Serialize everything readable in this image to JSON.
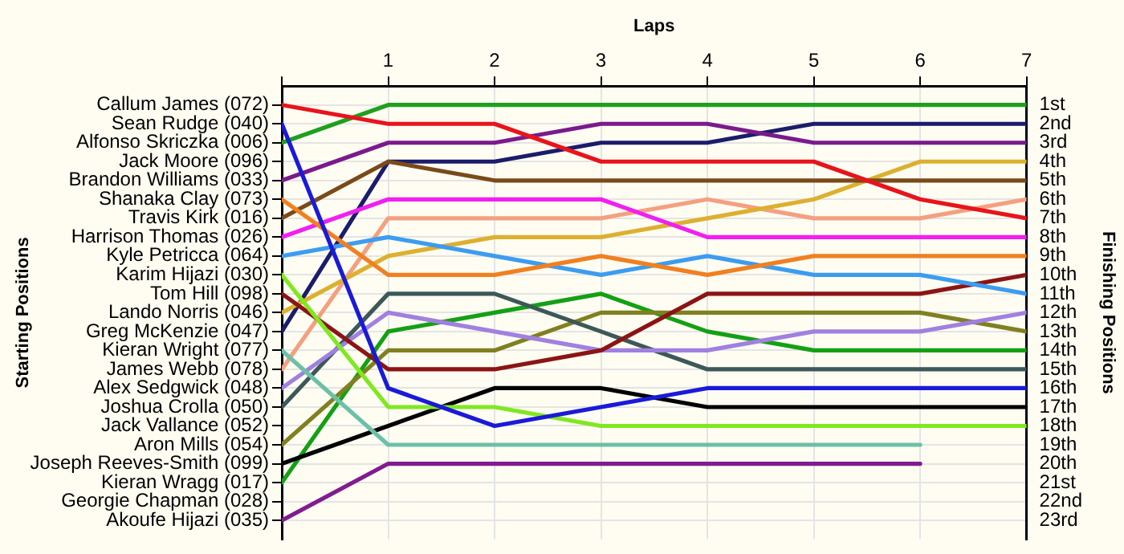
{
  "chart_data": {
    "type": "line",
    "xlabel": "Laps",
    "ylabel": "Finishing Positions",
    "annotations": [
      "Starting Positions"
    ],
    "x": [
      0,
      1,
      2,
      3,
      4,
      5,
      6,
      7
    ],
    "xlim": [
      0,
      7
    ],
    "xticks": [
      {
        "value": 0,
        "label": null
      },
      1,
      2,
      3,
      4,
      5,
      6,
      7
    ],
    "ylim": [
      24,
      0
    ],
    "yticks": [
      {
        "value": 1,
        "label": "1st"
      },
      {
        "value": 2,
        "label": "2nd"
      },
      {
        "value": 3,
        "label": "3rd"
      },
      {
        "value": 4,
        "label": "4th"
      },
      {
        "value": 5,
        "label": "5th"
      },
      {
        "value": 6,
        "label": "6th"
      },
      {
        "value": 7,
        "label": "7th"
      },
      {
        "value": 8,
        "label": "8th"
      },
      {
        "value": 9,
        "label": "9th"
      },
      {
        "value": 10,
        "label": "10th"
      },
      {
        "value": 11,
        "label": "11th"
      },
      {
        "value": 12,
        "label": "12th"
      },
      {
        "value": 13,
        "label": "13th"
      },
      {
        "value": 14,
        "label": "14th"
      },
      {
        "value": 15,
        "label": "15th"
      },
      {
        "value": 16,
        "label": "16th"
      },
      {
        "value": 17,
        "label": "17th"
      },
      {
        "value": 18,
        "label": "18th"
      },
      {
        "value": 19,
        "label": "19th"
      },
      {
        "value": 20,
        "label": "20th"
      },
      {
        "value": 21,
        "label": "21st"
      },
      {
        "value": 22,
        "label": "22nd"
      },
      {
        "value": 23,
        "label": "23rd"
      }
    ],
    "y_categories": [
      "Callum James (072)",
      "Sean Rudge (040)",
      "Alfonso Skriczka (006)",
      "Jack Moore (096)",
      "Brandon Williams (033)",
      "Shanaka Clay (073)",
      "Travis Kirk (016)",
      "Harrison Thomas (026)",
      "Kyle Petricca (064)",
      "Karim Hijazi (030)",
      "Tom Hill (098)",
      "Lando Norris (046)",
      "Greg McKenzie (047)",
      "Kieran Wright (077)",
      "James Webb (078)",
      "Alex Sedgwick (048)",
      "Joshua Crolla (050)",
      "Jack Vallance (052)",
      "Aron Mills (054)",
      "Joseph Reeves-Smith (099)",
      "Kieran Wragg (017)",
      "Georgie Chapman (028)",
      "Akoufe Hijazi (035)"
    ],
    "grid": true,
    "legend": false,
    "marker": "none",
    "line_style": "solid",
    "series": [
      {
        "color": "#e8141c",
        "values": [
          1,
          2,
          2,
          4,
          4,
          4,
          6,
          7
        ]
      },
      {
        "color": "#1a1ad8",
        "values": [
          2,
          16,
          18,
          17,
          16,
          16,
          16,
          16
        ]
      },
      {
        "color": "#1ea01e",
        "values": [
          3,
          1,
          1,
          1,
          1,
          1,
          1,
          1
        ]
      },
      {
        "color": "#7a1a8c",
        "values": [
          5,
          3,
          3,
          2,
          2,
          3,
          3,
          3
        ]
      },
      {
        "color": "#f08020",
        "values": [
          6,
          10,
          10,
          9,
          10,
          9,
          9,
          9
        ]
      },
      {
        "color": "#7a4a1a",
        "values": [
          7,
          4,
          5,
          5,
          5,
          5,
          5,
          5
        ]
      },
      {
        "color": "#f020f0",
        "values": [
          8,
          6,
          6,
          6,
          8,
          8,
          8,
          8
        ]
      },
      {
        "color": "#3c9cf0",
        "values": [
          9,
          8,
          9,
          10,
          9,
          10,
          10,
          11
        ]
      },
      {
        "color": "#80e820",
        "values": [
          10,
          17,
          17,
          18,
          18,
          18,
          18,
          18
        ]
      },
      {
        "color": "#8c1414",
        "values": [
          11,
          15,
          15,
          14,
          11,
          11,
          11,
          10
        ]
      },
      {
        "color": "#dcb030",
        "values": [
          12,
          9,
          8,
          8,
          7,
          6,
          4,
          4
        ]
      },
      {
        "color": "#1c1c6c",
        "values": [
          13,
          4,
          4,
          3,
          3,
          2,
          2,
          2
        ]
      },
      {
        "color": "#6cc0a8",
        "values": [
          14,
          19,
          19,
          19,
          19,
          19,
          19,
          null
        ]
      },
      {
        "color": "#f4a080",
        "values": [
          15,
          7,
          7,
          7,
          6,
          7,
          7,
          6
        ]
      },
      {
        "color": "#a080e0",
        "values": [
          16,
          12,
          13,
          14,
          14,
          13,
          13,
          12
        ]
      },
      {
        "color": "#3c5858",
        "values": [
          17,
          11,
          11,
          13,
          15,
          15,
          15,
          15
        ]
      },
      {
        "color": "#808020",
        "values": [
          19,
          14,
          14,
          12,
          12,
          12,
          12,
          13
        ]
      },
      {
        "color": "#000000",
        "values": [
          20,
          18,
          16,
          16,
          17,
          17,
          17,
          17
        ]
      },
      {
        "color": "#14a014",
        "values": [
          21,
          13,
          12,
          11,
          13,
          14,
          14,
          14
        ]
      },
      {
        "color": "#801c90",
        "values": [
          23,
          20,
          20,
          20,
          20,
          20,
          20,
          null
        ]
      }
    ]
  }
}
